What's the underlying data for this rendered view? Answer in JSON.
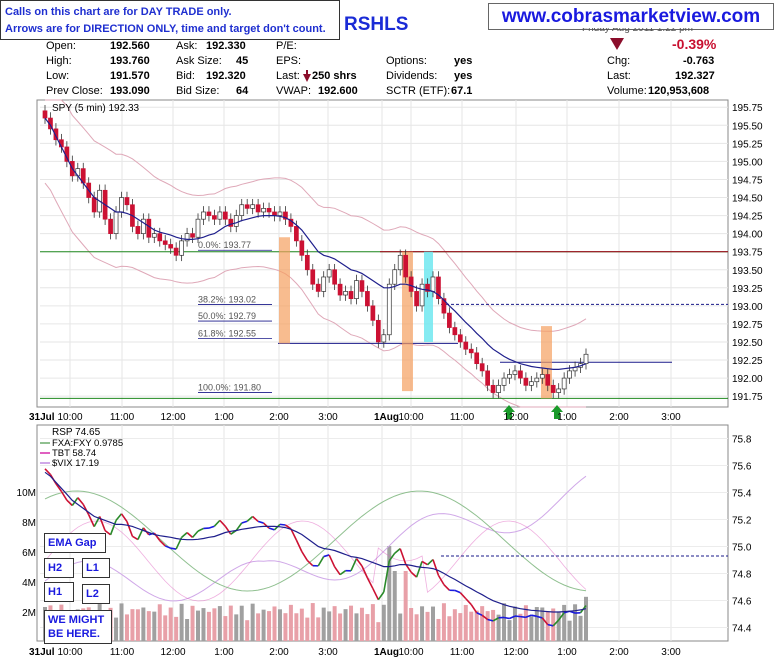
{
  "header": {
    "note_line1": "Calls on this chart are for DAY TRADE only.",
    "note_line2": "Arrows are for DIRECTION ONLY, time and target don't count.",
    "site_url": "www.cobrasmarketview.com",
    "ticker_label": "RSHLS",
    "clipped_date_text": "Friday    Aug 2011  1:22 pm",
    "change_percent": "-0.39%",
    "quote": {
      "open_label": "Open:",
      "open": "192.560",
      "high_label": "High:",
      "high": "193.760",
      "low_label": "Low:",
      "low": "191.570",
      "prev_close_label": "Prev Close:",
      "prev_close": "193.090",
      "ask_label": "Ask:",
      "ask": "192.330",
      "ask_size_label": "Ask Size:",
      "ask_size": "45",
      "bid_label": "Bid:",
      "bid": "192.320",
      "bid_size_label": "Bid Size:",
      "bid_size": "64",
      "pe_label": "P/E:",
      "eps_label": "EPS:",
      "last_label": "Last:",
      "last_size": "250 shrs",
      "vwap_label": "VWAP:",
      "vwap": "192.600",
      "options_label": "Options:",
      "options": "yes",
      "dividends_label": "Dividends:",
      "dividends": "yes",
      "sctr_label": "SCTR (ETF):",
      "sctr": "67.1",
      "chg_label": "Chg:",
      "chg": "-0.763",
      "last2_label": "Last:",
      "last2": "192.327",
      "volume_label": "Volume:",
      "volume": "120,953,608"
    }
  },
  "colors": {
    "up": "#2a8a2a",
    "down": "#cc1133",
    "ema": "#1f1f8c",
    "band": "#dfa8b8",
    "fib_line": "#1a1a8a",
    "green_line": "#1f8a1f",
    "red_line": "#a01020",
    "orange_bar": "#f5a060",
    "cyan_bar": "#70e8f0",
    "arrow": "#1a9a2a",
    "vol_up": "#a0a0a0",
    "vol_down": "#e8a0a8",
    "fxa": "#90c090",
    "tbt": "#e060c0",
    "vix": "#d0a8e8"
  },
  "legend_boxes": {
    "ema_gap": "EMA Gap",
    "h2": "H2",
    "l1": "L1",
    "h1": "H1",
    "l2": "L2",
    "might_line1": "WE MIGHT",
    "might_line2": "BE HERE."
  },
  "chart_data": [
    {
      "type": "candlestick",
      "title": "SPY (5 min) 192.33",
      "ylim": [
        191.6,
        195.85
      ],
      "y_ticks": [
        "195.75",
        "195.50",
        "195.25",
        "195.00",
        "194.75",
        "194.50",
        "194.25",
        "194.00",
        "193.75",
        "193.50",
        "193.25",
        "193.00",
        "192.75",
        "192.50",
        "192.25",
        "192.00",
        "191.75"
      ],
      "x_ticks": [
        "31Jul",
        "10:00",
        "11:00",
        "12:00",
        "1:00",
        "2:00",
        "3:00",
        "1Aug",
        "10:00",
        "11:00",
        "12:00",
        "1:00",
        "2:00",
        "3:00"
      ],
      "fib_labels": [
        "0.0%: 193.77",
        "38.2%: 193.02",
        "50.0%: 192.79",
        "61.8%: 192.55",
        "100.0%: 191.80"
      ],
      "closes": [
        195.6,
        195.45,
        195.3,
        195.2,
        195.0,
        194.8,
        194.9,
        194.7,
        194.5,
        194.3,
        194.6,
        194.2,
        194.0,
        194.3,
        194.5,
        194.4,
        194.1,
        194.0,
        194.2,
        193.95,
        194.0,
        193.9,
        193.85,
        193.8,
        193.7,
        193.9,
        194.0,
        193.95,
        194.2,
        194.3,
        194.25,
        194.2,
        194.3,
        194.2,
        194.1,
        194.25,
        194.4,
        194.35,
        194.4,
        194.3,
        194.35,
        194.3,
        194.25,
        194.3,
        194.2,
        194.1,
        193.9,
        193.7,
        193.5,
        193.3,
        193.2,
        193.4,
        193.5,
        193.3,
        193.15,
        193.2,
        193.1,
        193.35,
        193.2,
        193.0,
        192.8,
        192.5,
        192.6,
        193.3,
        193.5,
        193.7,
        193.4,
        193.2,
        193.0,
        193.3,
        193.2,
        193.4,
        193.1,
        192.9,
        192.7,
        192.6,
        192.5,
        192.4,
        192.35,
        192.2,
        192.1,
        191.9,
        191.8,
        191.9,
        192.0,
        192.05,
        192.1,
        192.0,
        191.9,
        191.95,
        192.0,
        192.05,
        191.9,
        191.8,
        191.85,
        192.0,
        192.1,
        192.15,
        192.2,
        192.33
      ],
      "ema": [
        195.6,
        195.5,
        195.35,
        195.2,
        195.05,
        194.9,
        194.8,
        194.7,
        194.6,
        194.5,
        194.45,
        194.4,
        194.35,
        194.3,
        194.3,
        194.28,
        194.25,
        194.2,
        194.15,
        194.1,
        194.05,
        194.02,
        194.0,
        193.98,
        193.95,
        193.93,
        193.92,
        193.92,
        193.93,
        193.95,
        193.98,
        194.0,
        194.05,
        194.1,
        194.13,
        194.15,
        194.18,
        194.2,
        194.22,
        194.24,
        194.25,
        194.25,
        194.25,
        194.24,
        194.22,
        194.18,
        194.12,
        194.05,
        193.95,
        193.85,
        193.75,
        193.7,
        193.68,
        193.65,
        193.6,
        193.55,
        193.5,
        193.48,
        193.45,
        193.4,
        193.35,
        193.3,
        193.25,
        193.25,
        193.27,
        193.3,
        193.3,
        193.28,
        193.25,
        193.23,
        193.22,
        193.2,
        193.15,
        193.08,
        193.0,
        192.93,
        192.85,
        192.77,
        192.7,
        192.62,
        192.55,
        192.47,
        192.4,
        192.35,
        192.3,
        192.26,
        192.23,
        192.2,
        192.18,
        192.16,
        192.15,
        192.14,
        192.13,
        192.12,
        192.12,
        192.13,
        192.14,
        192.15,
        192.17,
        192.2
      ]
    },
    {
      "type": "line",
      "title": "RSP 74.65",
      "legend": [
        "FXA:FXY 0.9785",
        "TBT 58.74",
        "$VIX 17.19"
      ],
      "y_ticks": [
        "75.8",
        "75.6",
        "75.4",
        "75.2",
        "75.0",
        "74.8",
        "74.6",
        "74.4"
      ],
      "volume_ticks": [
        "10M",
        "8M",
        "6M",
        "4M",
        "2M"
      ],
      "x_ticks": [
        "31Jul",
        "10:00",
        "11:00",
        "12:00",
        "1:00",
        "2:00",
        "3:00",
        "1Aug",
        "10:00",
        "11:00",
        "12:00",
        "1:00",
        "2:00",
        "3:00"
      ]
    }
  ]
}
